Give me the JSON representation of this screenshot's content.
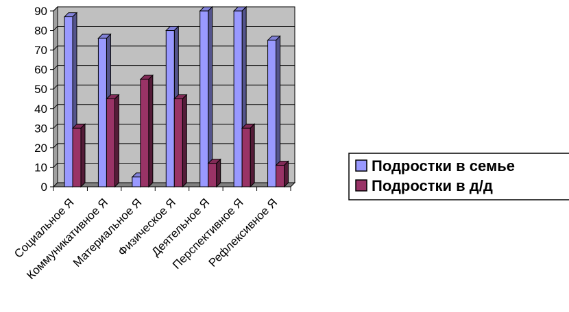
{
  "chart_data": {
    "type": "bar",
    "title": "",
    "xlabel": "",
    "ylabel": "",
    "ylim": [
      0,
      90
    ],
    "yticks": [
      0,
      10,
      20,
      30,
      40,
      50,
      60,
      70,
      80,
      90
    ],
    "grid": true,
    "legend_position": "right",
    "categories": [
      "Социальное Я",
      "Коммуникативное Я",
      "Материальное Я",
      "Физическое Я",
      "Деятельное Я",
      "Перспективное Я",
      "Рефлексивное Я"
    ],
    "series": [
      {
        "name": "Подростки в семье",
        "values": [
          87,
          76,
          5,
          80,
          90,
          90,
          75
        ],
        "color": "#9999ff"
      },
      {
        "name": "Подростки в д/д",
        "values": [
          30,
          45,
          55,
          45,
          12,
          30,
          11
        ],
        "color": "#993366"
      }
    ],
    "plot_background": "#c0c0c0"
  }
}
